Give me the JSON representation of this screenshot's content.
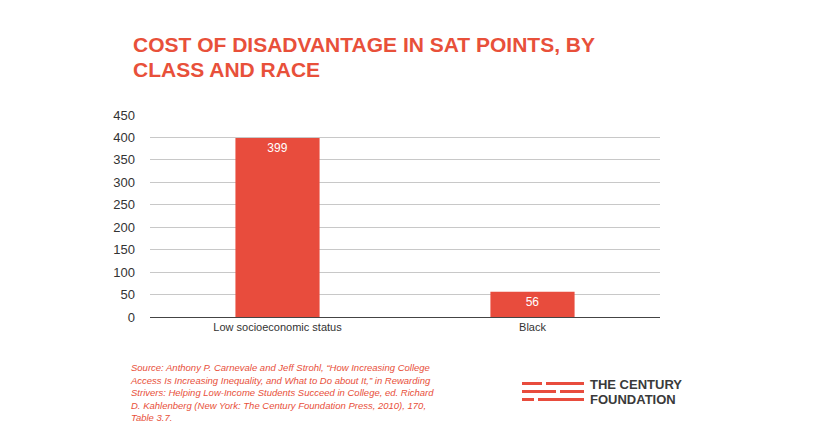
{
  "chart_data": {
    "type": "bar",
    "title": "COST OF DISADVANTAGE IN SAT POINTS, BY CLASS AND RACE",
    "categories": [
      "Low socioeconomic status",
      "Black"
    ],
    "values": [
      399,
      56
    ],
    "color": "#e84c3d",
    "ylim": [
      0,
      450
    ],
    "yticks": [
      0,
      50,
      100,
      150,
      200,
      250,
      300,
      350,
      400,
      450
    ],
    "grid": true,
    "data_labels": true,
    "source": "Source: Anthony P. Carnevale and Jeff Strohl, “How Increasing College Access Is Increasing Inequality, and What to Do about It,” in Rewarding Strivers: Helping Low-Income Students Succeed in College, ed. Richard D. Kahlenberg (New York: The Century Foundation Press, 2010), 170, Table 3.7.",
    "logo": "THE CENTURY FOUNDATION"
  }
}
